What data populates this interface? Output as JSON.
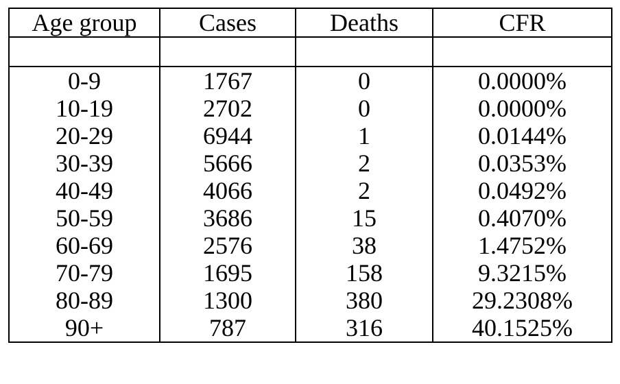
{
  "table": {
    "headers": [
      "Age group",
      "Cases",
      "Deaths",
      "CFR"
    ],
    "rows": [
      [
        "0-9",
        "1767",
        "0",
        "0.0000%"
      ],
      [
        "10-19",
        "2702",
        "0",
        "0.0000%"
      ],
      [
        "20-29",
        "6944",
        "1",
        "0.0144%"
      ],
      [
        "30-39",
        "5666",
        "2",
        "0.0353%"
      ],
      [
        "40-49",
        "4066",
        "2",
        "0.0492%"
      ],
      [
        "50-59",
        "3686",
        "15",
        "0.4070%"
      ],
      [
        "60-69",
        "2576",
        "38",
        "1.4752%"
      ],
      [
        "70-79",
        "1695",
        "158",
        "9.3215%"
      ],
      [
        "80-89",
        "1300",
        "380",
        "29.2308%"
      ],
      [
        "90+",
        "787",
        "316",
        "40.1525%"
      ]
    ]
  }
}
